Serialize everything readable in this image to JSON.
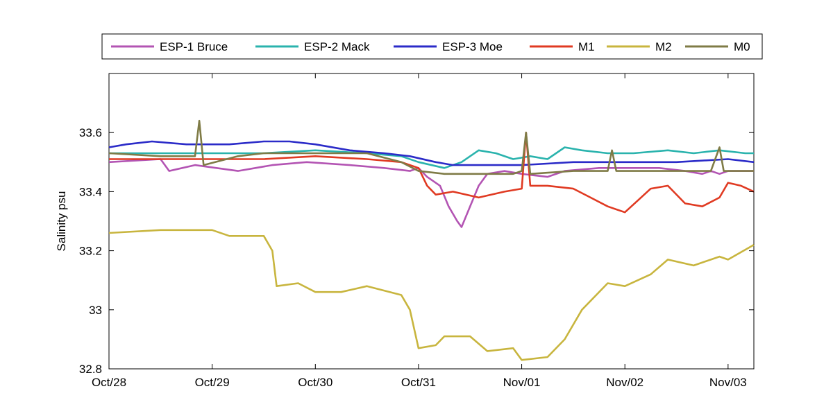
{
  "chart_data": {
    "type": "line",
    "title": "",
    "xlabel": "",
    "ylabel": "Salinity psu",
    "xlim": [
      "2012-10-28",
      "2012-11-03T06:00"
    ],
    "ylim": [
      32.8,
      33.8
    ],
    "x_ticks": [
      "Oct/28",
      "Oct/29",
      "Oct/30",
      "Oct/31",
      "Nov/01",
      "Nov/02",
      "Nov/03"
    ],
    "y_ticks": [
      32.8,
      33,
      33.2,
      33.4,
      33.6
    ],
    "y_tick_labels": [
      "32.8",
      "33",
      "33.2",
      "33.4",
      "33.6"
    ],
    "grid": false,
    "legend": {
      "placement": "top-outside",
      "orientation": "horizontal"
    },
    "series": [
      {
        "name": "ESP-1 Bruce",
        "color": "#b354b3",
        "points": [
          [
            "2012-10-28T00:00",
            33.5
          ],
          [
            "2012-10-28T12:00",
            33.51
          ],
          [
            "2012-10-28T14:00",
            33.47
          ],
          [
            "2012-10-28T20:00",
            33.49
          ],
          [
            "2012-10-29T06:00",
            33.47
          ],
          [
            "2012-10-29T14:00",
            33.49
          ],
          [
            "2012-10-29T22:00",
            33.5
          ],
          [
            "2012-10-30T08:00",
            33.49
          ],
          [
            "2012-10-30T16:00",
            33.48
          ],
          [
            "2012-10-30T22:00",
            33.47
          ],
          [
            "2012-10-31T00:00",
            33.48
          ],
          [
            "2012-10-31T02:00",
            33.45
          ],
          [
            "2012-10-31T05:00",
            33.42
          ],
          [
            "2012-10-31T07:00",
            33.35
          ],
          [
            "2012-10-31T09:00",
            33.3
          ],
          [
            "2012-10-31T10:00",
            33.28
          ],
          [
            "2012-10-31T12:00",
            33.35
          ],
          [
            "2012-10-31T14:00",
            33.42
          ],
          [
            "2012-10-31T16:00",
            33.46
          ],
          [
            "2012-10-31T20:00",
            33.47
          ],
          [
            "2012-11-01T00:00",
            33.46
          ],
          [
            "2012-11-01T06:00",
            33.45
          ],
          [
            "2012-11-01T10:00",
            33.47
          ],
          [
            "2012-11-01T18:00",
            33.48
          ],
          [
            "2012-11-02T02:00",
            33.48
          ],
          [
            "2012-11-02T08:00",
            33.48
          ],
          [
            "2012-11-02T14:00",
            33.47
          ],
          [
            "2012-11-02T18:00",
            33.46
          ],
          [
            "2012-11-02T20:00",
            33.47
          ],
          [
            "2012-11-02T22:00",
            33.46
          ],
          [
            "2012-11-03T00:00",
            33.47
          ],
          [
            "2012-11-03T06:00",
            33.47
          ]
        ]
      },
      {
        "name": "ESP-2 Mack",
        "color": "#2ab3ad",
        "points": [
          [
            "2012-10-28T00:00",
            33.53
          ],
          [
            "2012-10-28T12:00",
            33.53
          ],
          [
            "2012-10-29T00:00",
            33.53
          ],
          [
            "2012-10-29T12:00",
            33.53
          ],
          [
            "2012-10-30T00:00",
            33.54
          ],
          [
            "2012-10-30T12:00",
            33.53
          ],
          [
            "2012-10-30T20:00",
            33.52
          ],
          [
            "2012-10-31T00:00",
            33.5
          ],
          [
            "2012-10-31T06:00",
            33.48
          ],
          [
            "2012-10-31T10:00",
            33.5
          ],
          [
            "2012-10-31T14:00",
            33.54
          ],
          [
            "2012-10-31T18:00",
            33.53
          ],
          [
            "2012-10-31T22:00",
            33.51
          ],
          [
            "2012-11-01T02:00",
            33.52
          ],
          [
            "2012-11-01T06:00",
            33.51
          ],
          [
            "2012-11-01T10:00",
            33.55
          ],
          [
            "2012-11-01T14:00",
            33.54
          ],
          [
            "2012-11-01T20:00",
            33.53
          ],
          [
            "2012-11-02T02:00",
            33.53
          ],
          [
            "2012-11-02T10:00",
            33.54
          ],
          [
            "2012-11-02T16:00",
            33.53
          ],
          [
            "2012-11-02T22:00",
            33.54
          ],
          [
            "2012-11-03T04:00",
            33.53
          ],
          [
            "2012-11-03T06:00",
            33.53
          ]
        ]
      },
      {
        "name": "ESP-3 Moe",
        "color": "#2b2bc8",
        "points": [
          [
            "2012-10-28T00:00",
            33.55
          ],
          [
            "2012-10-28T04:00",
            33.56
          ],
          [
            "2012-10-28T10:00",
            33.57
          ],
          [
            "2012-10-28T18:00",
            33.56
          ],
          [
            "2012-10-29T04:00",
            33.56
          ],
          [
            "2012-10-29T12:00",
            33.57
          ],
          [
            "2012-10-29T18:00",
            33.57
          ],
          [
            "2012-10-30T00:00",
            33.56
          ],
          [
            "2012-10-30T08:00",
            33.54
          ],
          [
            "2012-10-30T16:00",
            33.53
          ],
          [
            "2012-10-30T22:00",
            33.52
          ],
          [
            "2012-10-31T04:00",
            33.5
          ],
          [
            "2012-10-31T08:00",
            33.49
          ],
          [
            "2012-10-31T16:00",
            33.49
          ],
          [
            "2012-11-01T00:00",
            33.49
          ],
          [
            "2012-11-01T12:00",
            33.5
          ],
          [
            "2012-11-02T00:00",
            33.5
          ],
          [
            "2012-11-02T12:00",
            33.5
          ],
          [
            "2012-11-03T00:00",
            33.51
          ],
          [
            "2012-11-03T06:00",
            33.5
          ]
        ]
      },
      {
        "name": "M1",
        "color": "#e03a22",
        "points": [
          [
            "2012-10-28T00:00",
            33.51
          ],
          [
            "2012-10-28T12:00",
            33.51
          ],
          [
            "2012-10-29T00:00",
            33.51
          ],
          [
            "2012-10-29T12:00",
            33.51
          ],
          [
            "2012-10-30T00:00",
            33.52
          ],
          [
            "2012-10-30T12:00",
            33.51
          ],
          [
            "2012-10-30T20:00",
            33.5
          ],
          [
            "2012-10-31T00:00",
            33.48
          ],
          [
            "2012-10-31T02:00",
            33.42
          ],
          [
            "2012-10-31T04:00",
            33.39
          ],
          [
            "2012-10-31T08:00",
            33.4
          ],
          [
            "2012-10-31T14:00",
            33.38
          ],
          [
            "2012-10-31T20:00",
            33.4
          ],
          [
            "2012-11-01T00:00",
            33.41
          ],
          [
            "2012-11-01T01:00",
            33.6
          ],
          [
            "2012-11-01T02:00",
            33.42
          ],
          [
            "2012-11-01T06:00",
            33.42
          ],
          [
            "2012-11-01T12:00",
            33.41
          ],
          [
            "2012-11-01T16:00",
            33.38
          ],
          [
            "2012-11-01T20:00",
            33.35
          ],
          [
            "2012-11-02T00:00",
            33.33
          ],
          [
            "2012-11-02T03:00",
            33.37
          ],
          [
            "2012-11-02T06:00",
            33.41
          ],
          [
            "2012-11-02T10:00",
            33.42
          ],
          [
            "2012-11-02T14:00",
            33.36
          ],
          [
            "2012-11-02T18:00",
            33.35
          ],
          [
            "2012-11-02T22:00",
            33.38
          ],
          [
            "2012-11-03T00:00",
            33.43
          ],
          [
            "2012-11-03T03:00",
            33.42
          ],
          [
            "2012-11-03T06:00",
            33.4
          ]
        ]
      },
      {
        "name": "M2",
        "color": "#c8b53e",
        "points": [
          [
            "2012-10-28T00:00",
            33.26
          ],
          [
            "2012-10-28T12:00",
            33.27
          ],
          [
            "2012-10-29T00:00",
            33.27
          ],
          [
            "2012-10-29T04:00",
            33.25
          ],
          [
            "2012-10-29T12:00",
            33.25
          ],
          [
            "2012-10-29T14:00",
            33.2
          ],
          [
            "2012-10-29T15:00",
            33.08
          ],
          [
            "2012-10-29T20:00",
            33.09
          ],
          [
            "2012-10-30T00:00",
            33.06
          ],
          [
            "2012-10-30T06:00",
            33.06
          ],
          [
            "2012-10-30T12:00",
            33.08
          ],
          [
            "2012-10-30T20:00",
            33.05
          ],
          [
            "2012-10-30T22:00",
            33.0
          ],
          [
            "2012-10-31T00:00",
            32.87
          ],
          [
            "2012-10-31T04:00",
            32.88
          ],
          [
            "2012-10-31T06:00",
            32.91
          ],
          [
            "2012-10-31T12:00",
            32.91
          ],
          [
            "2012-10-31T16:00",
            32.86
          ],
          [
            "2012-10-31T22:00",
            32.87
          ],
          [
            "2012-11-01T00:00",
            32.83
          ],
          [
            "2012-11-01T06:00",
            32.84
          ],
          [
            "2012-11-01T10:00",
            32.9
          ],
          [
            "2012-11-01T14:00",
            33.0
          ],
          [
            "2012-11-01T20:00",
            33.09
          ],
          [
            "2012-11-02T00:00",
            33.08
          ],
          [
            "2012-11-02T06:00",
            33.12
          ],
          [
            "2012-11-02T10:00",
            33.17
          ],
          [
            "2012-11-02T16:00",
            33.15
          ],
          [
            "2012-11-02T22:00",
            33.18
          ],
          [
            "2012-11-03T00:00",
            33.17
          ],
          [
            "2012-11-03T06:00",
            33.22
          ]
        ]
      },
      {
        "name": "M0",
        "color": "#7f7b46",
        "points": [
          [
            "2012-10-28T00:00",
            33.53
          ],
          [
            "2012-10-28T12:00",
            33.52
          ],
          [
            "2012-10-28T20:00",
            33.52
          ],
          [
            "2012-10-28T21:00",
            33.64
          ],
          [
            "2012-10-28T22:00",
            33.49
          ],
          [
            "2012-10-29T06:00",
            33.52
          ],
          [
            "2012-10-29T12:00",
            33.53
          ],
          [
            "2012-10-30T00:00",
            33.53
          ],
          [
            "2012-10-30T12:00",
            33.53
          ],
          [
            "2012-10-30T20:00",
            33.5
          ],
          [
            "2012-10-31T00:00",
            33.47
          ],
          [
            "2012-10-31T06:00",
            33.46
          ],
          [
            "2012-10-31T12:00",
            33.46
          ],
          [
            "2012-10-31T22:00",
            33.46
          ],
          [
            "2012-11-01T00:00",
            33.47
          ],
          [
            "2012-11-01T01:00",
            33.6
          ],
          [
            "2012-11-01T02:00",
            33.46
          ],
          [
            "2012-11-01T12:00",
            33.47
          ],
          [
            "2012-11-01T20:00",
            33.47
          ],
          [
            "2012-11-01T21:00",
            33.54
          ],
          [
            "2012-11-01T22:00",
            33.47
          ],
          [
            "2012-11-02T12:00",
            33.47
          ],
          [
            "2012-11-02T20:00",
            33.47
          ],
          [
            "2012-11-02T22:00",
            33.55
          ],
          [
            "2012-11-02T23:00",
            33.47
          ],
          [
            "2012-11-03T06:00",
            33.47
          ]
        ]
      }
    ]
  }
}
